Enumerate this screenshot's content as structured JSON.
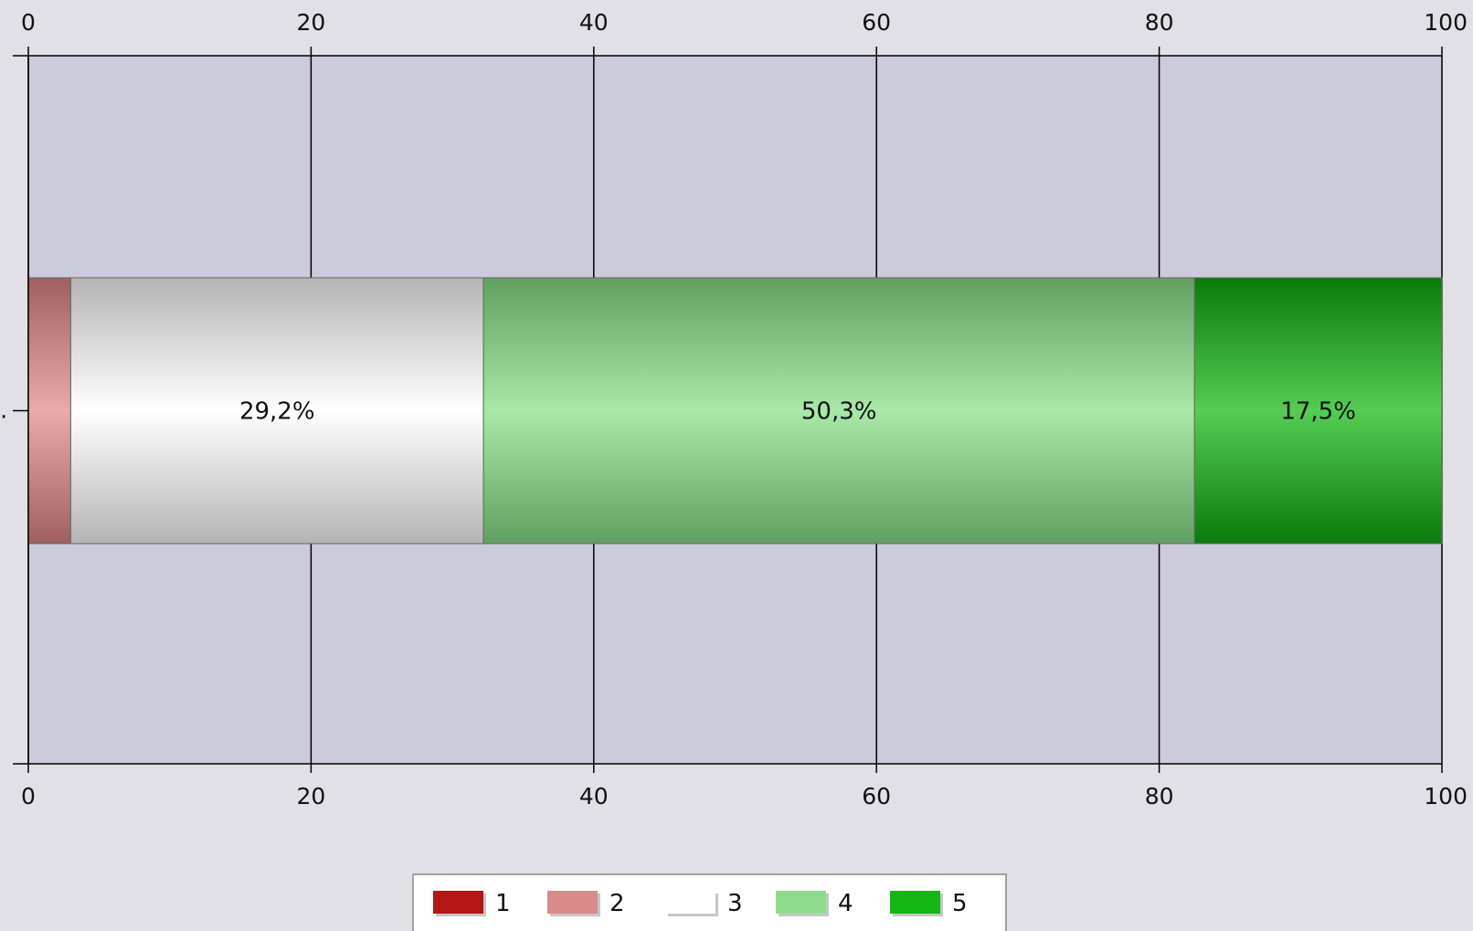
{
  "chart_data": {
    "type": "bar",
    "orientation": "horizontal",
    "stacked": true,
    "categories": [
      ""
    ],
    "xlim": [
      0,
      100
    ],
    "x_ticks": [
      0,
      20,
      40,
      60,
      80,
      100
    ],
    "x_tick_labels": [
      "0",
      "20",
      "40",
      "60",
      "80",
      "100"
    ],
    "x_axis_positions": [
      "top",
      "bottom"
    ],
    "grid": true,
    "legend_position": "bottom-center",
    "title": "",
    "xlabel": "",
    "ylabel": "",
    "category_label": ".",
    "series": [
      {
        "name": "1",
        "values": [
          0
        ],
        "data_label": "",
        "color": "#b51515"
      },
      {
        "name": "2",
        "values": [
          3.0
        ],
        "data_label": "",
        "color": "#d98a8a"
      },
      {
        "name": "3",
        "values": [
          29.2
        ],
        "data_label": "29,2%",
        "color": "#ffffff"
      },
      {
        "name": "4",
        "values": [
          50.3
        ],
        "data_label": "50,3%",
        "color": "#8fdc8f"
      },
      {
        "name": "5",
        "values": [
          17.5
        ],
        "data_label": "17,5%",
        "color": "#15b515"
      }
    ]
  },
  "colors": {
    "page_background": "#e0e0e6",
    "plot_background": "#cbcbdb",
    "axis_line": "#000000",
    "grid_line": "#000000",
    "bar_segment_1_tones": [
      "#8a1010",
      "#c83030"
    ],
    "bar_segment_2_tones": [
      "#9e6060",
      "#e8aaaa"
    ],
    "bar_segment_3_tones": [
      "#b4b4b4",
      "#ffffff"
    ],
    "bar_segment_4_tones": [
      "#62a062",
      "#a8e8a8"
    ],
    "bar_segment_5_tones": [
      "#0a7a0a",
      "#55cc55"
    ]
  }
}
